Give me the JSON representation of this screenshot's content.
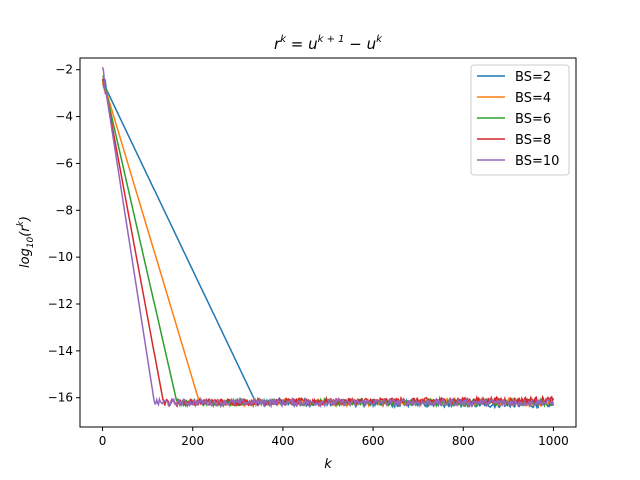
{
  "chart_data": {
    "type": "line",
    "title_base": "r",
    "title_sup": "k",
    "title_mid": " = u",
    "title_sup2": "k + 1",
    "title_end": " − u",
    "title_sup3": "k",
    "xlabel": "k",
    "ylabel_base": "log",
    "ylabel_sub": "10",
    "ylabel_arg": "(r",
    "ylabel_sup": "k",
    "ylabel_end": ")",
    "xlim": [
      -50,
      1050
    ],
    "ylim": [
      -17.25,
      -1.5
    ],
    "xticks": [
      0,
      200,
      400,
      600,
      800,
      1000
    ],
    "yticks": [
      -2,
      -4,
      -6,
      -8,
      -10,
      -12,
      -14,
      -16
    ],
    "legend_position": "top-right",
    "noise_floor": -16.25,
    "series": [
      {
        "name": "BS=2",
        "color": "#1f77b4",
        "points": [
          [
            0,
            -2.5
          ],
          [
            340,
            -16.2
          ],
          [
            1000,
            -16.3
          ]
        ]
      },
      {
        "name": "BS=4",
        "color": "#ff7f0e",
        "points": [
          [
            0,
            -2.4
          ],
          [
            215,
            -16.2
          ],
          [
            1000,
            -16.2
          ]
        ]
      },
      {
        "name": "BS=6",
        "color": "#2ca02c",
        "points": [
          [
            0,
            -2.3
          ],
          [
            165,
            -16.2
          ],
          [
            1000,
            -16.2
          ]
        ]
      },
      {
        "name": "BS=8",
        "color": "#d62728",
        "points": [
          [
            0,
            -2.2
          ],
          [
            135,
            -16.2
          ],
          [
            1000,
            -16.1
          ]
        ]
      },
      {
        "name": "BS=10",
        "color": "#9467bd",
        "points": [
          [
            0,
            -2.0
          ],
          [
            115,
            -16.2
          ],
          [
            1000,
            -16.2
          ]
        ]
      }
    ]
  }
}
